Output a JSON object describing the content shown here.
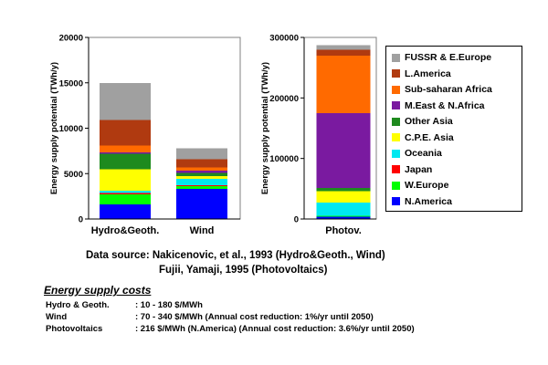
{
  "chart_data": [
    {
      "type": "bar",
      "stacked": true,
      "ylabel": "Energy supply potential (TWh/y)",
      "ylim": [
        0,
        20000
      ],
      "yticks": [
        "0",
        "5000",
        "10000",
        "15000",
        "20000"
      ],
      "categories": [
        "Hydro&Geoth.",
        "Wind"
      ],
      "series": [
        {
          "name": "N.America",
          "values": [
            1600,
            3300
          ]
        },
        {
          "name": "W.Europe",
          "values": [
            1100,
            300
          ]
        },
        {
          "name": "Japan",
          "values": [
            150,
            100
          ]
        },
        {
          "name": "Oceania",
          "values": [
            250,
            700
          ]
        },
        {
          "name": "C.P.E. Asia",
          "values": [
            2400,
            300
          ]
        },
        {
          "name": "Other Asia",
          "values": [
            1700,
            400
          ]
        },
        {
          "name": "M.East & N.Africa",
          "values": [
            150,
            250
          ]
        },
        {
          "name": "Sub-saharan Africa",
          "values": [
            750,
            350
          ]
        },
        {
          "name": "L.America",
          "values": [
            2800,
            900
          ]
        },
        {
          "name": "FUSSR & E.Europe",
          "values": [
            4100,
            1200
          ]
        }
      ]
    },
    {
      "type": "bar",
      "stacked": true,
      "ylabel": "Energy supply potential (TWh/y)",
      "ylim": [
        0,
        300000
      ],
      "yticks": [
        "0",
        "100000",
        "200000",
        "300000"
      ],
      "categories": [
        "Photov."
      ],
      "series": [
        {
          "name": "N.America",
          "values": [
            4000
          ]
        },
        {
          "name": "W.Europe",
          "values": [
            1000
          ]
        },
        {
          "name": "Japan",
          "values": [
            500
          ]
        },
        {
          "name": "Oceania",
          "values": [
            21500
          ]
        },
        {
          "name": "C.P.E. Asia",
          "values": [
            19000
          ]
        },
        {
          "name": "Other Asia",
          "values": [
            5000
          ]
        },
        {
          "name": "M.East & N.Africa",
          "values": [
            124000
          ]
        },
        {
          "name": "Sub-saharan Africa",
          "values": [
            95000
          ]
        },
        {
          "name": "L.America",
          "values": [
            10000
          ]
        },
        {
          "name": "FUSSR & E.Europe",
          "values": [
            7000
          ]
        }
      ]
    }
  ],
  "legend": [
    {
      "label": "FUSSR & E.Europe",
      "color": "#a0a0a0"
    },
    {
      "label": "L.America",
      "color": "#b03a10"
    },
    {
      "label": "Sub-saharan Africa",
      "color": "#ff6a00"
    },
    {
      "label": "M.East & N.Africa",
      "color": "#7a1aa0"
    },
    {
      "label": "Other Asia",
      "color": "#1e8a1e"
    },
    {
      "label": "C.P.E. Asia",
      "color": "#ffff00"
    },
    {
      "label": "Oceania",
      "color": "#00e8f0"
    },
    {
      "label": "Japan",
      "color": "#ff0000"
    },
    {
      "label": "W.Europe",
      "color": "#00ff00"
    },
    {
      "label": "N.America",
      "color": "#0000ff"
    }
  ],
  "source": {
    "line1": "Data source:  Nakicenovic, et al., 1993  (Hydro&Geoth., Wind)",
    "line2": "Fujii, Yamaji, 1995 (Photovoltaics)"
  },
  "costs": {
    "title": "Energy supply costs",
    "rows": [
      {
        "name": "Hydro & Geoth.",
        "value": ": 10 - 180 $/MWh"
      },
      {
        "name": "Wind",
        "value": ": 70 - 340 $/MWh  (Annual cost reduction: 1%/yr until 2050)"
      },
      {
        "name": "Photovoltaics",
        "value": ": 216 $/MWh (N.America)  (Annual cost reduction: 3.6%/yr until 2050)"
      }
    ]
  }
}
